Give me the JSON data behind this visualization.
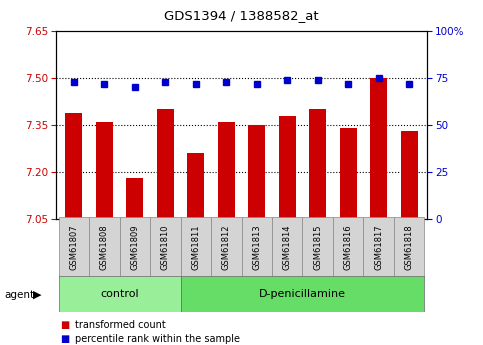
{
  "title": "GDS1394 / 1388582_at",
  "samples": [
    "GSM61807",
    "GSM61808",
    "GSM61809",
    "GSM61810",
    "GSM61811",
    "GSM61812",
    "GSM61813",
    "GSM61814",
    "GSM61815",
    "GSM61816",
    "GSM61817",
    "GSM61818"
  ],
  "red_values": [
    7.39,
    7.36,
    7.18,
    7.4,
    7.26,
    7.36,
    7.35,
    7.38,
    7.4,
    7.34,
    7.5,
    7.33
  ],
  "blue_values": [
    73,
    72,
    70,
    73,
    72,
    73,
    72,
    74,
    74,
    72,
    75,
    72
  ],
  "ylim_left": [
    7.05,
    7.65
  ],
  "ylim_right": [
    0,
    100
  ],
  "yticks_left": [
    7.05,
    7.2,
    7.35,
    7.5,
    7.65
  ],
  "yticks_right": [
    0,
    25,
    50,
    75,
    100
  ],
  "hlines": [
    7.2,
    7.35,
    7.5
  ],
  "bar_color": "#cc0000",
  "dot_color": "#0000cc",
  "control_samples": 4,
  "control_label": "control",
  "treatment_label": "D-penicillamine",
  "agent_label": "agent",
  "legend_red": "transformed count",
  "legend_blue": "percentile rank within the sample",
  "bg_plot": "#ffffff",
  "bg_tick": "#d4d4d4",
  "bg_control": "#99ee99",
  "bg_treatment": "#66dd66",
  "bar_bottom": 7.05,
  "bar_width": 0.55
}
